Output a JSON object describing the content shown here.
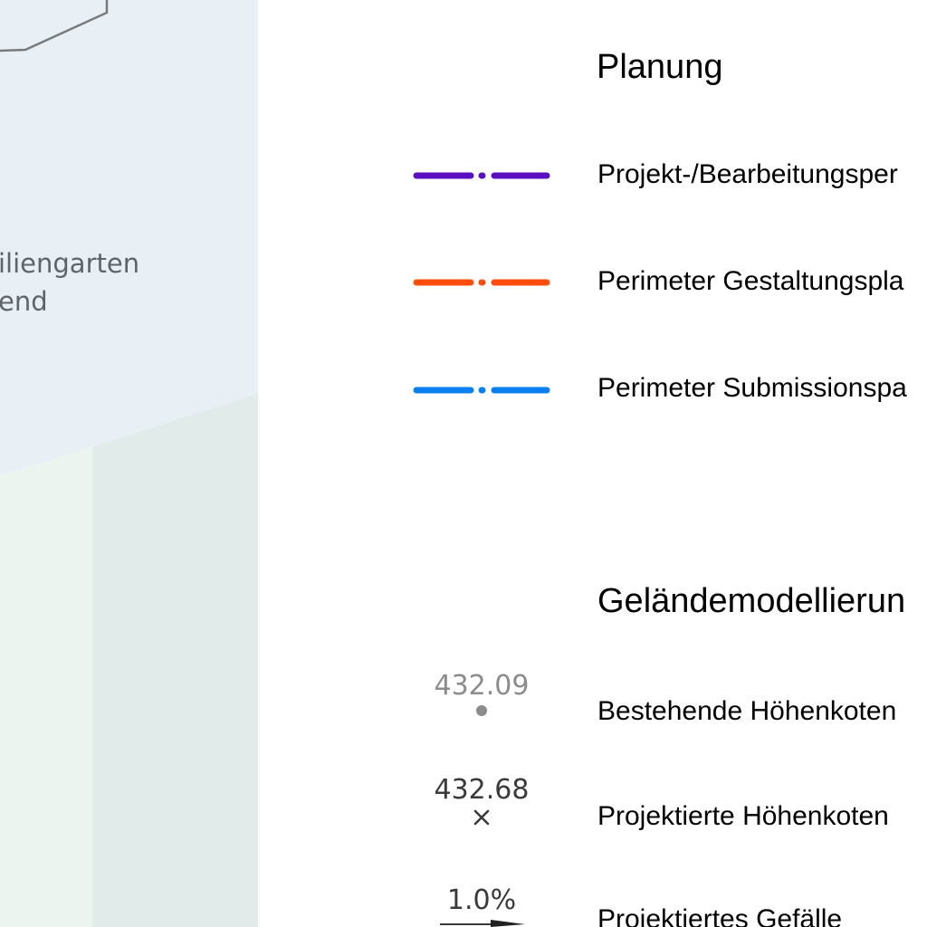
{
  "map": {
    "labels": [
      "iliengarten",
      "end"
    ],
    "colors": {
      "upper_area": "#e8f0f6",
      "lower_left_area": "#ebf4ef",
      "lower_right_area": "#e1ebe9",
      "outline": "#7a7a7a",
      "label_text": "#5f6468"
    }
  },
  "legend": {
    "planung": {
      "heading": "Planung",
      "items": [
        {
          "label": "Projekt-/Bearbeitungsper",
          "line_style": "dash-dot",
          "color": "#5b0fc0"
        },
        {
          "label": "Perimeter Gestaltungspla",
          "line_style": "dash-dot",
          "color": "#ff4d0c"
        },
        {
          "label": "Perimeter Submissionspa",
          "line_style": "dash-dot",
          "color": "#0a7ff0"
        }
      ]
    },
    "gelaende": {
      "heading": "Geländemodellierun",
      "items": [
        {
          "label": "Bestehende Höhenkoten",
          "symbol_value": "432.09",
          "symbol": "dot",
          "color": "#8c8c8c"
        },
        {
          "label": "Projektierte Höhenkoten",
          "symbol_value": "432.68",
          "symbol": "cross",
          "color": "#3a3a3a"
        },
        {
          "label": "Projektiertes Gefälle",
          "symbol_value": "1.0%",
          "symbol": "arrow",
          "color": "#3a3a3a"
        }
      ]
    }
  }
}
